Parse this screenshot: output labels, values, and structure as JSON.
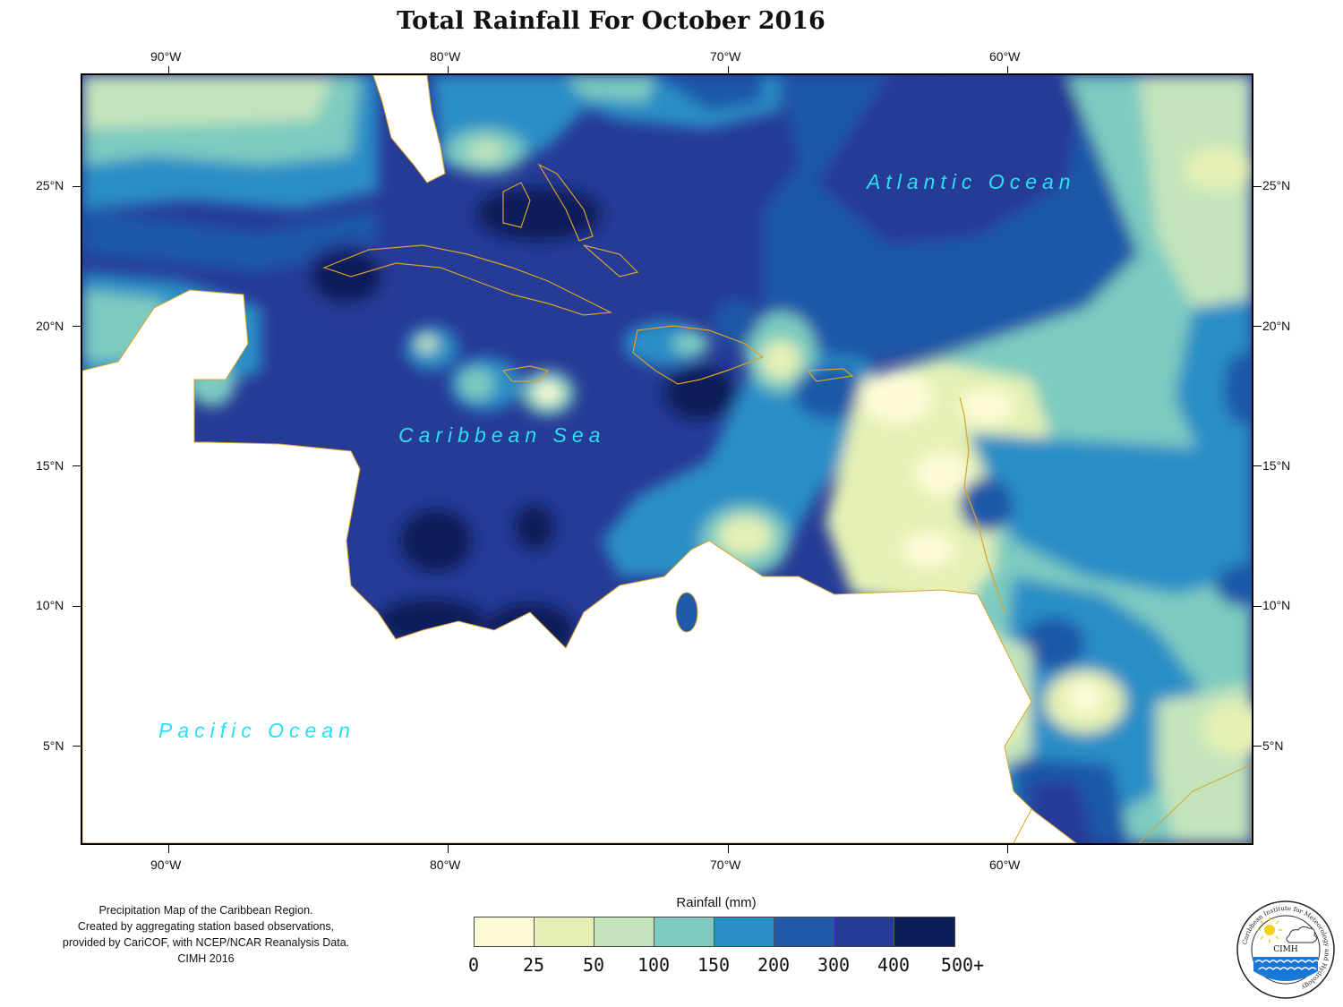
{
  "title": "Total Rainfall For October 2016",
  "axes": {
    "top_ticks": [
      "90°W",
      "80°W",
      "70°W",
      "60°W"
    ],
    "bottom_ticks": [
      "90°W",
      "80°W",
      "70°W",
      "60°W"
    ],
    "left_ticks": [
      "25°N",
      "20°N",
      "15°N",
      "10°N",
      "5°N"
    ],
    "right_ticks": [
      "25°N",
      "20°N",
      "15°N",
      "10°N",
      "5°N"
    ]
  },
  "map": {
    "labels": {
      "atlantic": "Atlantic Ocean",
      "caribbean": "Caribbean Sea",
      "pacific": "Pacific Ocean"
    }
  },
  "caption": {
    "lines": [
      "Precipitation Map of the Caribbean Region.",
      "Created by aggregating station based observations,",
      "provided by CariCOF, with NCEP/NCAR Reanalysis Data.",
      "CIMH 2016"
    ]
  },
  "legend": {
    "title": "Rainfall (mm)",
    "breaks": [
      "0",
      "25",
      "50",
      "100",
      "150",
      "200",
      "300",
      "400",
      "500+"
    ],
    "colors": [
      "#fdfbd6",
      "#e4f0b4",
      "#c3e4bb",
      "#7dcbc0",
      "#2a8ec6",
      "#1f59a8",
      "#263b96",
      "#0d1f5a"
    ]
  },
  "logo": {
    "name": "CIMH",
    "ring_text": "Caribbean Institute for Meteorology and Hydrology"
  }
}
